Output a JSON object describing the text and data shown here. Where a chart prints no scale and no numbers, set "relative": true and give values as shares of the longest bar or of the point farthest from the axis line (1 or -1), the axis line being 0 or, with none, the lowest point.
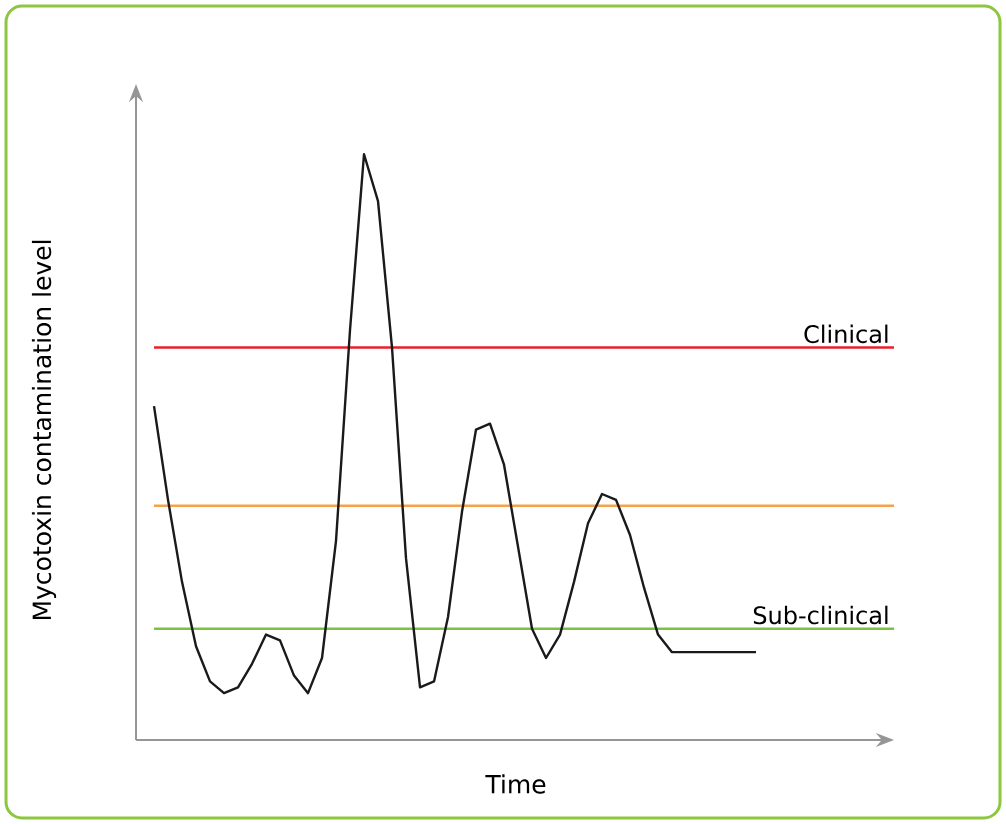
{
  "chart_data": {
    "type": "line",
    "relative": true,
    "xlabel": "Time",
    "ylabel": "Mycotoxin contamination level",
    "categories": [
      null,
      null,
      null,
      null,
      null,
      null,
      null,
      null,
      null,
      null,
      null,
      null,
      null,
      null,
      null,
      null,
      null,
      null,
      null,
      null,
      null,
      null,
      null,
      null,
      null,
      null,
      null,
      null,
      null,
      null,
      null,
      null,
      null,
      null,
      null,
      null,
      null,
      null,
      null,
      null,
      null,
      null,
      null,
      null
    ],
    "series": [
      {
        "color": "#1a1a1a",
        "values": [
          0.57,
          0.41,
          0.27,
          0.16,
          0.1,
          0.08,
          0.09,
          0.13,
          0.18,
          0.17,
          0.11,
          0.08,
          0.14,
          0.34,
          0.7,
          1,
          0.92,
          0.67,
          0.31,
          0.09,
          0.1,
          0.21,
          0.39,
          0.53,
          0.54,
          0.47,
          0.33,
          0.19,
          0.14,
          0.18,
          0.27,
          0.37,
          0.42,
          0.41,
          0.35,
          0.26,
          0.18,
          0.15,
          0.15,
          0.15,
          0.15,
          0.15,
          0.15,
          0.15
        ]
      }
    ],
    "ref_lines": [
      {
        "axis": "y",
        "value": 0.67,
        "label": "Clinical",
        "color": "#e8202a"
      },
      {
        "axis": "y",
        "value": 0.4,
        "color": "#f5a24b"
      },
      {
        "axis": "y",
        "value": 0.19,
        "label": "Sub-clinical",
        "color": "#7dc142"
      }
    ]
  }
}
